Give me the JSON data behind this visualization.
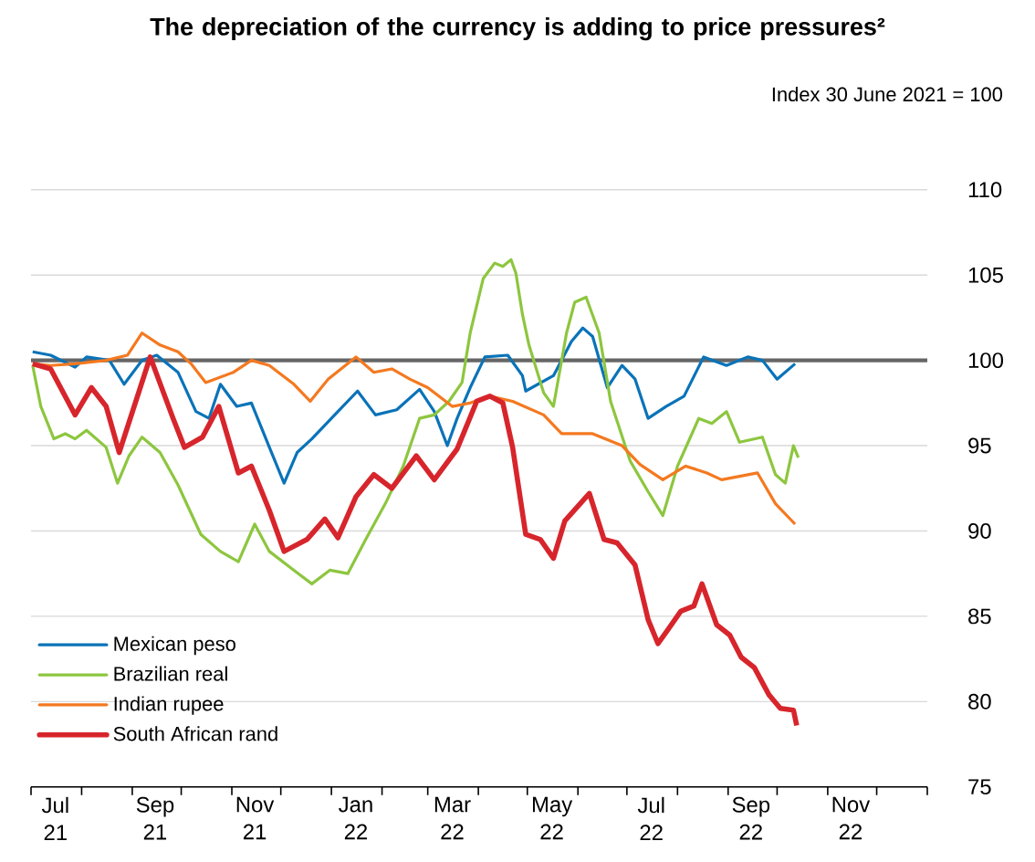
{
  "chart_data": {
    "type": "line",
    "title": "The depreciation of the currency is adding to price pressures²",
    "subtitle": "Index 30 June 2021 = 100",
    "xlim": [
      "2021-07-01",
      "2023-01-01"
    ],
    "xticks": [
      {
        "value": "2021-07-01",
        "label": null
      },
      {
        "value": "2021-08-01",
        "label": null
      },
      {
        "value": "2021-09-01",
        "label": null
      },
      {
        "value": "2021-10-01",
        "label": null
      },
      {
        "value": "2021-11-01",
        "label": null
      },
      {
        "value": "2021-12-01",
        "label": null
      },
      {
        "value": "2022-01-01",
        "label": null
      },
      {
        "value": "2022-02-01",
        "label": null
      },
      {
        "value": "2022-03-01",
        "label": null
      },
      {
        "value": "2022-04-01",
        "label": null
      },
      {
        "value": "2022-05-01",
        "label": null
      },
      {
        "value": "2022-06-01",
        "label": null
      },
      {
        "value": "2022-07-01",
        "label": null
      },
      {
        "value": "2022-08-01",
        "label": null
      },
      {
        "value": "2022-09-01",
        "label": null
      },
      {
        "value": "2022-10-01",
        "label": null
      },
      {
        "value": "2022-11-01",
        "label": null
      },
      {
        "value": "2022-12-01",
        "label": null
      },
      {
        "value": "2023-01-01",
        "label": null
      },
      {
        "value": "2021-07-16",
        "label": "Jul 21"
      },
      {
        "value": "2021-09-15",
        "label": "Sep 21"
      },
      {
        "value": "2021-11-15",
        "label": "Nov 21"
      },
      {
        "value": "2022-01-16",
        "label": "Jan 22"
      },
      {
        "value": "2022-03-16",
        "label": "Mar 22"
      },
      {
        "value": "2022-05-16",
        "label": "May 22"
      },
      {
        "value": "2022-07-16",
        "label": "Jul 22"
      },
      {
        "value": "2022-09-15",
        "label": "Sep 22"
      },
      {
        "value": "2022-11-15",
        "label": "Nov 22"
      }
    ],
    "ylim": [
      75,
      110
    ],
    "yticks": [
      75,
      80,
      85,
      90,
      95,
      100,
      105,
      110
    ],
    "grid": "y",
    "legend": "bottom left",
    "ref_lines": [
      {
        "axis": "y",
        "value": 100,
        "label": null,
        "color": "#666666"
      }
    ],
    "series": [
      {
        "name": "Mexican peso",
        "color": "#0a73b8",
        "x": [
          "2021-07-02",
          "2021-07-13",
          "2021-07-28",
          "2021-08-04",
          "2021-08-18",
          "2021-08-27",
          "2021-09-07",
          "2021-09-16",
          "2021-09-29",
          "2021-10-10",
          "2021-10-18",
          "2021-10-25",
          "2021-11-04",
          "2021-11-13",
          "2021-11-24",
          "2021-12-03",
          "2021-12-11",
          "2021-12-20",
          "2022-01-05",
          "2022-01-17",
          "2022-01-28",
          "2022-02-10",
          "2022-02-24",
          "2022-03-05",
          "2022-03-13",
          "2022-03-19",
          "2022-03-27",
          "2022-04-05",
          "2022-04-19",
          "2022-04-28",
          "2022-04-30",
          "2022-05-17",
          "2022-05-28",
          "2022-06-04",
          "2022-06-10",
          "2022-06-19",
          "2022-06-28",
          "2022-07-06",
          "2022-07-14",
          "2022-07-25",
          "2022-08-05",
          "2022-08-17",
          "2022-08-31",
          "2022-09-13",
          "2022-09-22",
          "2022-10-01",
          "2022-10-12"
        ],
        "values": [
          100.5,
          100.3,
          99.6,
          100.2,
          100.0,
          98.6,
          100.0,
          100.3,
          99.3,
          97.0,
          96.6,
          98.6,
          97.3,
          97.5,
          94.9,
          92.8,
          94.6,
          95.4,
          97.0,
          98.2,
          96.8,
          97.1,
          98.3,
          97.0,
          95.0,
          96.6,
          98.4,
          100.2,
          100.3,
          99.1,
          98.2,
          99.1,
          101.1,
          101.9,
          101.4,
          98.4,
          99.7,
          98.9,
          96.6,
          97.3,
          97.9,
          100.2,
          99.7,
          100.2,
          100.0,
          98.9,
          99.8
        ]
      },
      {
        "name": "Brazilian real",
        "color": "#8dc63f",
        "x": [
          "2021-07-02",
          "2021-07-07",
          "2021-07-15",
          "2021-07-22",
          "2021-07-28",
          "2021-08-04",
          "2021-08-16",
          "2021-08-23",
          "2021-08-30",
          "2021-09-07",
          "2021-09-18",
          "2021-09-29",
          "2021-10-13",
          "2021-10-25",
          "2021-11-05",
          "2021-11-15",
          "2021-11-24",
          "2021-12-09",
          "2021-12-20",
          "2021-12-31",
          "2022-01-11",
          "2022-01-22",
          "2022-02-03",
          "2022-02-14",
          "2022-02-24",
          "2022-03-05",
          "2022-03-14",
          "2022-03-22",
          "2022-03-27",
          "2022-04-04",
          "2022-04-11",
          "2022-04-16",
          "2022-04-21",
          "2022-04-24",
          "2022-04-28",
          "2022-05-02",
          "2022-05-11",
          "2022-05-17",
          "2022-05-25",
          "2022-05-30",
          "2022-06-06",
          "2022-06-14",
          "2022-06-21",
          "2022-07-03",
          "2022-07-14",
          "2022-07-23",
          "2022-08-01",
          "2022-08-14",
          "2022-08-22",
          "2022-08-31",
          "2022-09-08",
          "2022-09-22",
          "2022-09-30",
          "2022-10-06",
          "2022-10-11",
          "2022-10-14"
        ],
        "values": [
          99.7,
          97.3,
          95.4,
          95.7,
          95.4,
          95.9,
          94.9,
          92.8,
          94.4,
          95.5,
          94.6,
          92.7,
          89.8,
          88.8,
          88.2,
          90.4,
          88.8,
          87.7,
          86.9,
          87.7,
          87.5,
          89.5,
          91.6,
          93.8,
          96.6,
          96.8,
          97.6,
          98.7,
          101.6,
          104.8,
          105.7,
          105.5,
          105.9,
          105.1,
          102.7,
          100.9,
          98.1,
          97.3,
          101.6,
          103.4,
          103.7,
          101.6,
          97.6,
          94.1,
          92.3,
          90.9,
          93.8,
          96.6,
          96.3,
          97.0,
          95.2,
          95.5,
          93.3,
          92.8,
          95.0,
          94.3
        ]
      },
      {
        "name": "Indian rupee",
        "color": "#f47920",
        "x": [
          "2021-07-02",
          "2021-07-13",
          "2021-07-28",
          "2021-08-16",
          "2021-08-29",
          "2021-09-07",
          "2021-09-18",
          "2021-09-29",
          "2021-10-07",
          "2021-10-16",
          "2021-11-02",
          "2021-11-13",
          "2021-11-24",
          "2021-12-09",
          "2021-12-19",
          "2021-12-30",
          "2022-01-16",
          "2022-01-27",
          "2022-02-07",
          "2022-02-18",
          "2022-03-01",
          "2022-03-16",
          "2022-03-27",
          "2022-04-08",
          "2022-04-22",
          "2022-05-11",
          "2022-05-22",
          "2022-06-10",
          "2022-06-28",
          "2022-07-09",
          "2022-07-23",
          "2022-08-06",
          "2022-08-19",
          "2022-08-28",
          "2022-09-19",
          "2022-09-30",
          "2022-10-12"
        ],
        "values": [
          99.8,
          99.7,
          99.8,
          100.0,
          100.3,
          101.6,
          100.9,
          100.5,
          99.8,
          98.7,
          99.3,
          100.0,
          99.7,
          98.6,
          97.6,
          98.9,
          100.2,
          99.3,
          99.5,
          98.9,
          98.4,
          97.3,
          97.5,
          97.9,
          97.6,
          96.8,
          95.7,
          95.7,
          95.0,
          93.9,
          93.0,
          93.8,
          93.4,
          93.0,
          93.4,
          91.6,
          90.4
        ]
      },
      {
        "name": "South African rand",
        "color": "#d7252c",
        "x": [
          "2021-07-02",
          "2021-07-13",
          "2021-07-28",
          "2021-08-07",
          "2021-08-16",
          "2021-08-24",
          "2021-09-12",
          "2021-09-26",
          "2021-10-03",
          "2021-10-14",
          "2021-10-24",
          "2021-11-05",
          "2021-11-13",
          "2021-11-24",
          "2021-12-03",
          "2021-12-17",
          "2021-12-28",
          "2022-01-05",
          "2022-01-16",
          "2022-01-27",
          "2022-02-07",
          "2022-02-22",
          "2022-03-05",
          "2022-03-19",
          "2022-03-31",
          "2022-04-08",
          "2022-04-16",
          "2022-04-22",
          "2022-04-30",
          "2022-05-09",
          "2022-05-17",
          "2022-05-24",
          "2022-06-08",
          "2022-06-17",
          "2022-06-25",
          "2022-07-06",
          "2022-07-14",
          "2022-07-20",
          "2022-07-26",
          "2022-08-03",
          "2022-08-11",
          "2022-08-16",
          "2022-08-25",
          "2022-09-02",
          "2022-09-09",
          "2022-09-17",
          "2022-09-26",
          "2022-10-03",
          "2022-10-11",
          "2022-10-13"
        ],
        "values": [
          99.8,
          99.5,
          96.8,
          98.4,
          97.3,
          94.6,
          100.2,
          96.6,
          94.9,
          95.5,
          97.3,
          93.4,
          93.8,
          91.2,
          88.8,
          89.5,
          90.7,
          89.6,
          92.0,
          93.3,
          92.5,
          94.4,
          93.0,
          94.8,
          97.6,
          97.9,
          97.5,
          94.9,
          89.8,
          89.5,
          88.4,
          90.6,
          92.2,
          89.5,
          89.3,
          88.0,
          84.8,
          83.4,
          84.2,
          85.3,
          85.6,
          86.9,
          84.5,
          83.9,
          82.6,
          82.0,
          80.4,
          79.6,
          79.5,
          78.6
        ]
      }
    ]
  }
}
